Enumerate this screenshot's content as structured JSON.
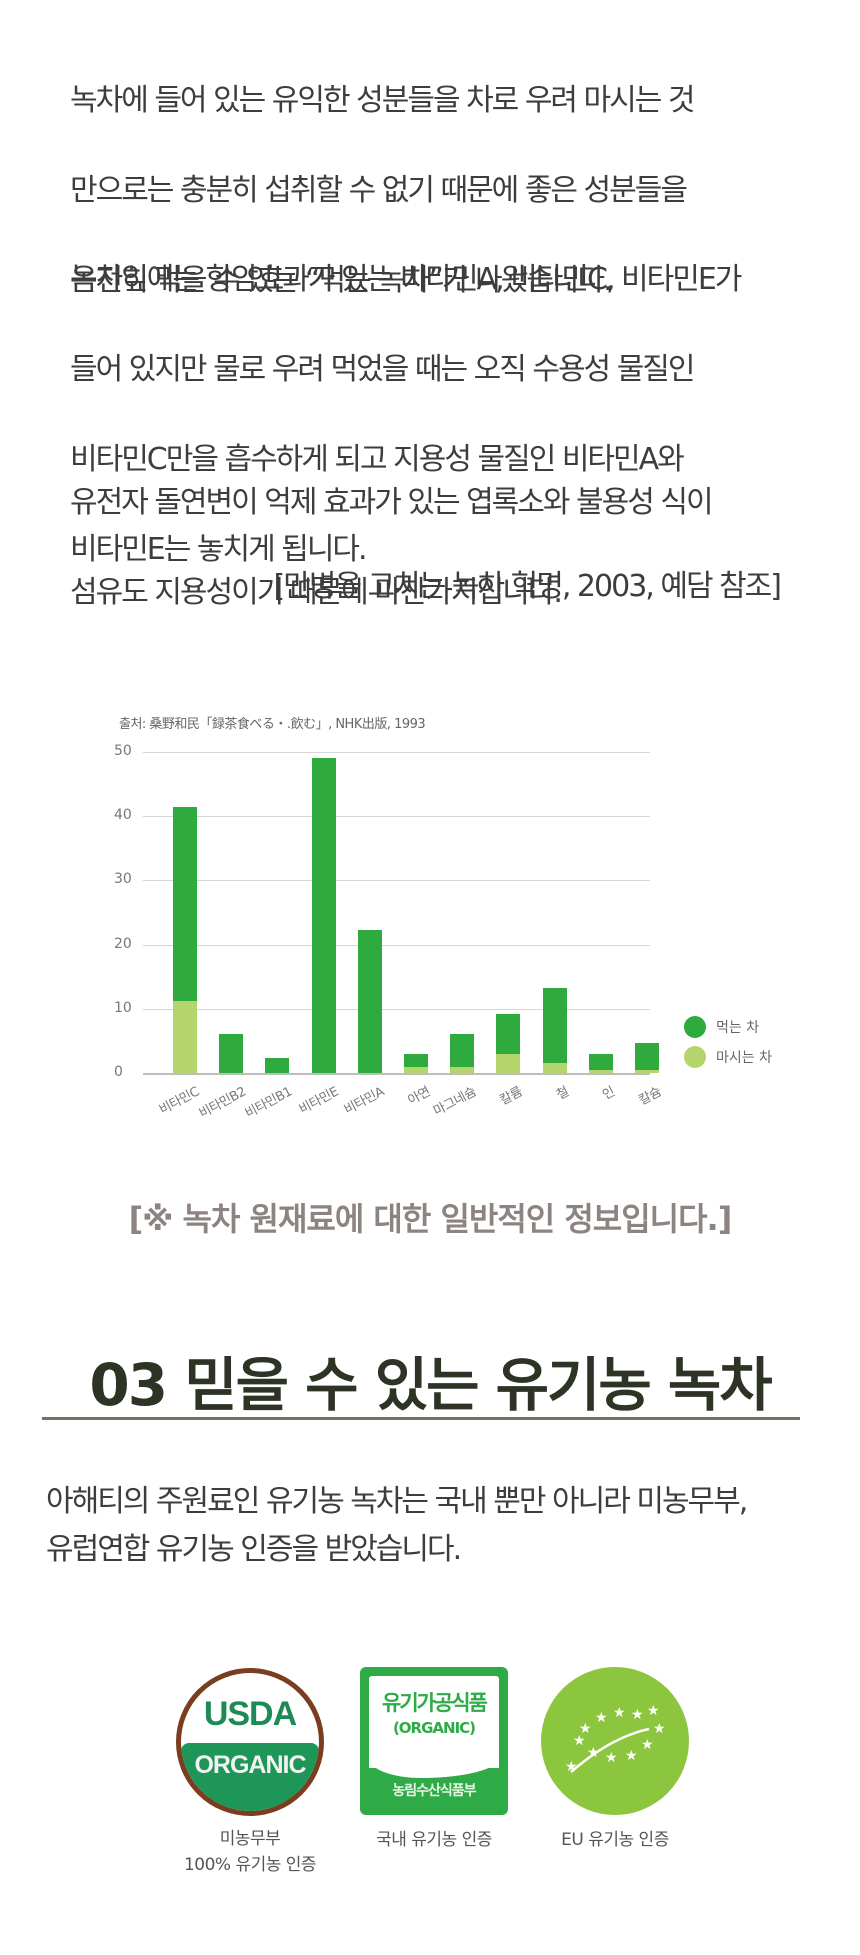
{
  "paragraphs": [
    {
      "lines": [
        "녹차에 들어 있는 유익한 성분들을 차로 우려 마시는 것",
        "만으로는 충분히 섭취할 수 없기 때문에 좋은 성분들을",
        "온전히 먹을 수 있는  “먹는 녹차”가 나왔습니다."
      ]
    },
    {
      "lines": [
        "녹차잎에는 항암효과가 있는 비타민A, 비타민C, 비타민E가",
        "들어 있지만 물로 우려 먹었을 때는 오직 수용성 물질인",
        "비타민C만을 흡수하게 되고 지용성 물질인 비타민A와",
        "비타민E는 놓치게 됩니다."
      ]
    },
    {
      "lines": [
        "유전자 돌연변이 억제 효과가 있는 엽록소와 불용성 식이",
        "섬유도 지용성이기 때문에 마찬가지입니다."
      ]
    }
  ],
  "citation": "[만병을 고치는 녹차 혁명, 2003, 예담 참조]",
  "chart_data": {
    "type": "bar",
    "stacked": true,
    "title": "",
    "source": "출처: 桑野和民「録茶食べる・.飲む」, NHK出版, 1993",
    "categories": [
      "비타민C",
      "비타민B2",
      "비타민B1",
      "비타민E",
      "비타민A",
      "아연",
      "마그네슘",
      "칼륨",
      "철",
      "인",
      "칼슘"
    ],
    "series": [
      {
        "name": "마시는 차",
        "color": "#b3d56b",
        "values": [
          11.2,
          0,
          0,
          0,
          0,
          1.0,
          1.0,
          3.0,
          1.5,
          0.4,
          0.5
        ]
      },
      {
        "name": "먹는 차",
        "color": "#2eaa3e",
        "values": [
          30.3,
          6.0,
          2.3,
          49.0,
          22.3,
          1.9,
          5.0,
          6.2,
          11.8,
          2.5,
          4.2
        ]
      }
    ],
    "totals": [
      41.5,
      6.0,
      2.3,
      49.0,
      22.3,
      2.9,
      6.0,
      9.2,
      13.3,
      2.9,
      4.7
    ],
    "xlabel": "",
    "ylabel": "",
    "ylim": [
      0,
      50
    ],
    "yticks": [
      "0",
      "10",
      "20",
      "30",
      "40",
      "50"
    ],
    "grid": true,
    "legend": {
      "position": "right",
      "entries": [
        "먹는 차",
        "마시는 차"
      ]
    }
  },
  "note": "[※ 녹차 원재료에 대한 일반적인 정보입니다.]",
  "section": {
    "title": "03 믿을 수 있는 유기농 녹차",
    "intro_lines": [
      "아해티의 주원료인 유기농 녹차는 국내 뿐만 아니라 미농무부,",
      "유럽연합 유기농 인증을 받았습니다."
    ]
  },
  "certifications": [
    {
      "icon": "usda-organic-logo",
      "logo_line1": "USDA",
      "logo_line2": "ORGANIC",
      "label_lines": [
        "미농무부",
        "100% 유기농 인증"
      ]
    },
    {
      "icon": "korea-organic-logo",
      "logo_line1": "유기가공식품",
      "logo_line2": "(ORGANIC)",
      "logo_line3": "농림수산식품부",
      "label_lines": [
        "국내 유기농 인증"
      ]
    },
    {
      "icon": "eu-organic-leaf-logo",
      "label_lines": [
        "EU 유기농 인증"
      ]
    }
  ]
}
